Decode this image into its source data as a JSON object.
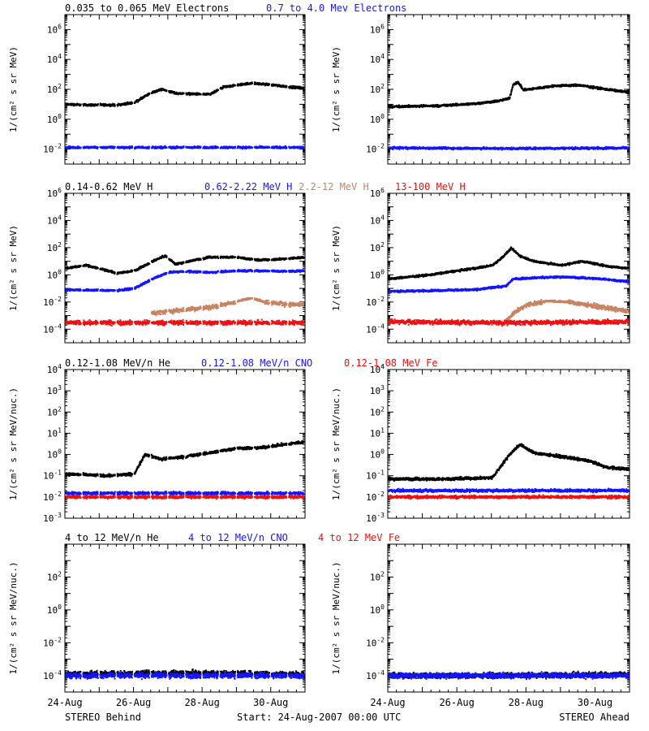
{
  "colors": {
    "black": "#000000",
    "blue": "#1515ff",
    "tan": "#c68463",
    "red": "#ee1111"
  },
  "rows": [
    {
      "legend": [
        {
          "text": "0.035 to 0.065 MeV Electrons",
          "color": "#000000"
        },
        {
          "text": "0.7 to 4.0 Mev Electrons",
          "color": "#1515ff"
        }
      ],
      "ylabel": "1/(cm² s sr MeV)",
      "y_range_log10": [
        -3,
        7
      ],
      "y_ticks": [
        {
          "exp": 6,
          "label": "10^6"
        },
        {
          "exp": 4,
          "label": "10^4"
        },
        {
          "exp": 2,
          "label": "10^2"
        },
        {
          "exp": 0,
          "label": "10^0"
        },
        {
          "exp": -2,
          "label": "10^-2"
        }
      ]
    },
    {
      "legend": [
        {
          "text": "0.14-0.62 MeV H",
          "color": "#000000"
        },
        {
          "text": "0.62-2.22 MeV H",
          "color": "#1515ff"
        },
        {
          "text": "2.2-12 MeV H",
          "color": "#c68463"
        },
        {
          "text": "13-100 MeV H",
          "color": "#ee1111"
        }
      ],
      "ylabel": "1/(cm² s sr MeV)",
      "y_range_log10": [
        -5,
        6
      ],
      "y_ticks": [
        {
          "exp": 6,
          "label": "10^6"
        },
        {
          "exp": 4,
          "label": "10^4"
        },
        {
          "exp": 2,
          "label": "10^2"
        },
        {
          "exp": 0,
          "label": "10^0"
        },
        {
          "exp": -2,
          "label": "10^-2"
        },
        {
          "exp": -4,
          "label": "10^-4"
        }
      ]
    },
    {
      "legend": [
        {
          "text": "0.12-1.08 MeV/n He",
          "color": "#000000"
        },
        {
          "text": "0.12-1.08 MeV/n CNO",
          "color": "#1515ff"
        },
        {
          "text": "0.12-1.08 MeV Fe",
          "color": "#ee1111"
        }
      ],
      "ylabel": "1/(cm² s sr MeV/nuc.)",
      "y_range_log10": [
        -3,
        4
      ],
      "y_ticks": [
        {
          "exp": 4,
          "label": "10^4"
        },
        {
          "exp": 3,
          "label": "10^3"
        },
        {
          "exp": 2,
          "label": "10^2"
        },
        {
          "exp": 1,
          "label": "10^1"
        },
        {
          "exp": 0,
          "label": "10^0"
        },
        {
          "exp": -1,
          "label": "10^-1"
        },
        {
          "exp": -2,
          "label": "10^-2"
        },
        {
          "exp": -3,
          "label": "10^-3"
        }
      ]
    },
    {
      "legend": [
        {
          "text": "4 to 12 MeV/n He",
          "color": "#000000"
        },
        {
          "text": "4 to 12 MeV/n CNO",
          "color": "#1515ff"
        },
        {
          "text": "4 to 12 MeV Fe",
          "color": "#ee1111"
        }
      ],
      "ylabel": "1/(cm² s sr MeV/nuc.)",
      "y_range_log10": [
        -5,
        4
      ],
      "y_ticks": [
        {
          "exp": 2,
          "label": "10^2"
        },
        {
          "exp": 0,
          "label": "10^0"
        },
        {
          "exp": -2,
          "label": "10^-2"
        },
        {
          "exp": -4,
          "label": "10^-4"
        }
      ]
    }
  ],
  "x_axis": {
    "range_days": [
      "24-Aug-2007",
      "31-Aug-2007"
    ],
    "tick_labels": [
      "24-Aug",
      "26-Aug",
      "28-Aug",
      "30-Aug"
    ]
  },
  "footer": {
    "left": "STEREO Behind",
    "center": "Start: 24-Aug-2007 00:00 UTC",
    "right": "STEREO Ahead"
  },
  "chart_data": [
    {
      "panel": "Behind electrons",
      "type": "scatter",
      "y_scale": "log",
      "x_unit": "days since start",
      "x_range": [
        0,
        7
      ],
      "series": [
        {
          "name": "0.035 to 0.065 MeV Electrons",
          "color": "#000000",
          "gappy": true,
          "points": [
            [
              0,
              10
            ],
            [
              0.6,
              9
            ],
            [
              1.5,
              9
            ],
            [
              2.0,
              13
            ],
            [
              2.5,
              60
            ],
            [
              2.8,
              100
            ],
            [
              3.2,
              55
            ],
            [
              3.6,
              50
            ],
            [
              4.2,
              45
            ],
            [
              4.6,
              140
            ],
            [
              5.4,
              260
            ],
            [
              6.0,
              200
            ],
            [
              6.6,
              140
            ],
            [
              7,
              120
            ]
          ]
        },
        {
          "name": "0.7 to 4.0 Mev Electrons",
          "color": "#1515ff",
          "gappy": true,
          "points": [
            [
              0,
              0.013
            ],
            [
              3.5,
              0.013
            ],
            [
              7,
              0.013
            ]
          ]
        }
      ]
    },
    {
      "panel": "Ahead electrons",
      "type": "scatter",
      "y_scale": "log",
      "x_unit": "days since start",
      "x_range": [
        0,
        7
      ],
      "series": [
        {
          "name": "0.035 to 0.065 MeV Electrons",
          "color": "#000000",
          "gappy": false,
          "points": [
            [
              0,
              7
            ],
            [
              1.5,
              8
            ],
            [
              2.5,
              11
            ],
            [
              3.2,
              17
            ],
            [
              3.5,
              25
            ],
            [
              3.6,
              200
            ],
            [
              3.75,
              300
            ],
            [
              3.9,
              90
            ],
            [
              4.2,
              110
            ],
            [
              4.8,
              170
            ],
            [
              5.5,
              190
            ],
            [
              6.2,
              110
            ],
            [
              7,
              60
            ]
          ]
        },
        {
          "name": "0.7 to 4.0 Mev Electrons",
          "color": "#1515ff",
          "gappy": false,
          "points": [
            [
              0,
              0.012
            ],
            [
              3.5,
              0.011
            ],
            [
              7,
              0.012
            ]
          ]
        }
      ]
    },
    {
      "panel": "Behind protons",
      "type": "scatter",
      "y_scale": "log",
      "x_unit": "days since start",
      "x_range": [
        0,
        7
      ],
      "series": [
        {
          "name": "0.14-0.62 MeV H",
          "color": "#000000",
          "gappy": true,
          "points": [
            [
              0,
              3
            ],
            [
              0.6,
              5
            ],
            [
              1.5,
              1.3
            ],
            [
              2.0,
              2
            ],
            [
              2.6,
              12
            ],
            [
              2.9,
              25
            ],
            [
              3.2,
              6
            ],
            [
              3.6,
              10
            ],
            [
              4.2,
              20
            ],
            [
              5.0,
              20
            ],
            [
              5.6,
              12
            ],
            [
              6.4,
              15
            ],
            [
              7,
              20
            ]
          ]
        },
        {
          "name": "0.62-2.22 MeV H",
          "color": "#1515ff",
          "gappy": true,
          "points": [
            [
              0,
              0.08
            ],
            [
              1.5,
              0.07
            ],
            [
              2.0,
              0.1
            ],
            [
              2.6,
              0.6
            ],
            [
              3.0,
              1.5
            ],
            [
              3.5,
              1.8
            ],
            [
              4.2,
              1.5
            ],
            [
              5.0,
              2
            ],
            [
              5.6,
              2
            ],
            [
              6.4,
              1.8
            ],
            [
              7,
              2
            ]
          ]
        },
        {
          "name": "2.2-12 MeV H",
          "color": "#c68463",
          "gappy": true,
          "points": [
            [
              2.5,
              0.0015
            ],
            [
              3.0,
              0.002
            ],
            [
              3.6,
              0.003
            ],
            [
              4.2,
              0.004
            ],
            [
              4.8,
              0.008
            ],
            [
              5.4,
              0.02
            ],
            [
              5.8,
              0.01
            ],
            [
              6.4,
              0.007
            ],
            [
              7,
              0.006
            ]
          ]
        },
        {
          "name": "13-100 MeV H",
          "color": "#ee1111",
          "gappy": true,
          "points": [
            [
              0,
              0.0003
            ],
            [
              3.5,
              0.0003
            ],
            [
              7,
              0.0003
            ]
          ]
        }
      ]
    },
    {
      "panel": "Ahead protons",
      "type": "scatter",
      "y_scale": "log",
      "x_unit": "days since start",
      "x_range": [
        0,
        7
      ],
      "series": [
        {
          "name": "0.14-0.62 MeV H",
          "color": "#000000",
          "gappy": false,
          "points": [
            [
              0,
              0.5
            ],
            [
              1.2,
              1
            ],
            [
              2.0,
              2
            ],
            [
              2.5,
              3
            ],
            [
              3.0,
              5
            ],
            [
              3.3,
              20
            ],
            [
              3.55,
              90
            ],
            [
              3.8,
              25
            ],
            [
              4.2,
              10
            ],
            [
              5.0,
              5
            ],
            [
              5.6,
              10
            ],
            [
              6.4,
              4
            ],
            [
              7,
              3
            ]
          ]
        },
        {
          "name": "0.62-2.22 MeV H",
          "color": "#1515ff",
          "gappy": false,
          "points": [
            [
              0,
              0.06
            ],
            [
              2.5,
              0.08
            ],
            [
              3.4,
              0.15
            ],
            [
              3.6,
              0.5
            ],
            [
              4.2,
              0.6
            ],
            [
              5.0,
              0.7
            ],
            [
              5.6,
              0.6
            ],
            [
              6.2,
              0.5
            ],
            [
              7,
              0.3
            ]
          ]
        },
        {
          "name": "2.2-12 MeV H",
          "color": "#c68463",
          "gappy": false,
          "points": [
            [
              3.3,
              0.0002
            ],
            [
              3.6,
              0.0015
            ],
            [
              4.0,
              0.006
            ],
            [
              4.6,
              0.012
            ],
            [
              5.2,
              0.01
            ],
            [
              5.8,
              0.006
            ],
            [
              6.5,
              0.003
            ],
            [
              7,
              0.002
            ]
          ]
        },
        {
          "name": "13-100 MeV H",
          "color": "#ee1111",
          "gappy": false,
          "points": [
            [
              0,
              0.00035
            ],
            [
              3.5,
              0.0003
            ],
            [
              7,
              0.00035
            ]
          ]
        }
      ]
    },
    {
      "panel": "Behind suprathermal ions",
      "type": "scatter",
      "y_scale": "log",
      "x_unit": "days since start",
      "x_range": [
        0,
        7
      ],
      "series": [
        {
          "name": "0.12-1.08 MeV/n He",
          "color": "#000000",
          "gappy": true,
          "points": [
            [
              0,
              0.12
            ],
            [
              1.2,
              0.1
            ],
            [
              2.0,
              0.12
            ],
            [
              2.3,
              1
            ],
            [
              2.8,
              0.6
            ],
            [
              3.5,
              0.8
            ],
            [
              4.2,
              1.2
            ],
            [
              5.0,
              2
            ],
            [
              5.6,
              2
            ],
            [
              6.4,
              3
            ],
            [
              7,
              4
            ]
          ]
        },
        {
          "name": "0.12-1.08 MeV/n CNO",
          "color": "#1515ff",
          "gappy": true,
          "points": [
            [
              0,
              0.015
            ],
            [
              3.5,
              0.015
            ],
            [
              7,
              0.015
            ]
          ]
        },
        {
          "name": "0.12-1.08 MeV Fe",
          "color": "#ee1111",
          "gappy": true,
          "points": [
            [
              0,
              0.01
            ],
            [
              3.5,
              0.01
            ],
            [
              7,
              0.01
            ]
          ]
        }
      ]
    },
    {
      "panel": "Ahead suprathermal ions",
      "type": "scatter",
      "y_scale": "log",
      "x_unit": "days since start",
      "x_range": [
        0,
        7
      ],
      "series": [
        {
          "name": "0.12-1.08 MeV/n He",
          "color": "#000000",
          "gappy": false,
          "points": [
            [
              0,
              0.07
            ],
            [
              1.5,
              0.07
            ],
            [
              3.0,
              0.08
            ],
            [
              3.5,
              1
            ],
            [
              3.8,
              3
            ],
            [
              4.2,
              1.2
            ],
            [
              5.0,
              0.8
            ],
            [
              5.8,
              0.5
            ],
            [
              6.3,
              0.25
            ],
            [
              7,
              0.2
            ]
          ]
        },
        {
          "name": "0.12-1.08 MeV/n CNO",
          "color": "#1515ff",
          "gappy": false,
          "points": [
            [
              0,
              0.02
            ],
            [
              3.5,
              0.02
            ],
            [
              7,
              0.02
            ]
          ]
        },
        {
          "name": "0.12-1.08 MeV Fe",
          "color": "#ee1111",
          "gappy": false,
          "points": [
            [
              0,
              0.01
            ],
            [
              3.5,
              0.01
            ],
            [
              7,
              0.01
            ]
          ]
        }
      ]
    },
    {
      "panel": "Behind energetic ions",
      "type": "scatter",
      "y_scale": "log",
      "x_unit": "days since start",
      "x_range": [
        0,
        7
      ],
      "series": [
        {
          "name": "4 to 12 MeV/n He",
          "color": "#000000",
          "gappy": true,
          "points": [
            [
              0,
              0.00012
            ],
            [
              3.5,
              0.00015
            ],
            [
              7,
              0.00012
            ]
          ]
        },
        {
          "name": "4 to 12 MeV/n CNO",
          "color": "#1515ff",
          "gappy": true,
          "points": [
            [
              0,
              0.0001
            ],
            [
              3.5,
              0.0001
            ],
            [
              7,
              0.0001
            ]
          ]
        },
        {
          "name": "4 to 12 MeV Fe",
          "color": "#ee1111",
          "gappy": true,
          "points": []
        }
      ]
    },
    {
      "panel": "Ahead energetic ions",
      "type": "scatter",
      "y_scale": "log",
      "x_unit": "days since start",
      "x_range": [
        0,
        7
      ],
      "series": [
        {
          "name": "4 to 12 MeV/n He",
          "color": "#000000",
          "gappy": false,
          "points": [
            [
              0,
              0.0001
            ],
            [
              3.5,
              0.0001
            ],
            [
              7,
              0.00012
            ]
          ]
        },
        {
          "name": "4 to 12 MeV/n CNO",
          "color": "#1515ff",
          "gappy": false,
          "points": [
            [
              0,
              0.0001
            ],
            [
              3.5,
              0.0001
            ],
            [
              7,
              0.0001
            ]
          ]
        },
        {
          "name": "4 to 12 MeV Fe",
          "color": "#ee1111",
          "gappy": false,
          "points": []
        }
      ]
    }
  ]
}
